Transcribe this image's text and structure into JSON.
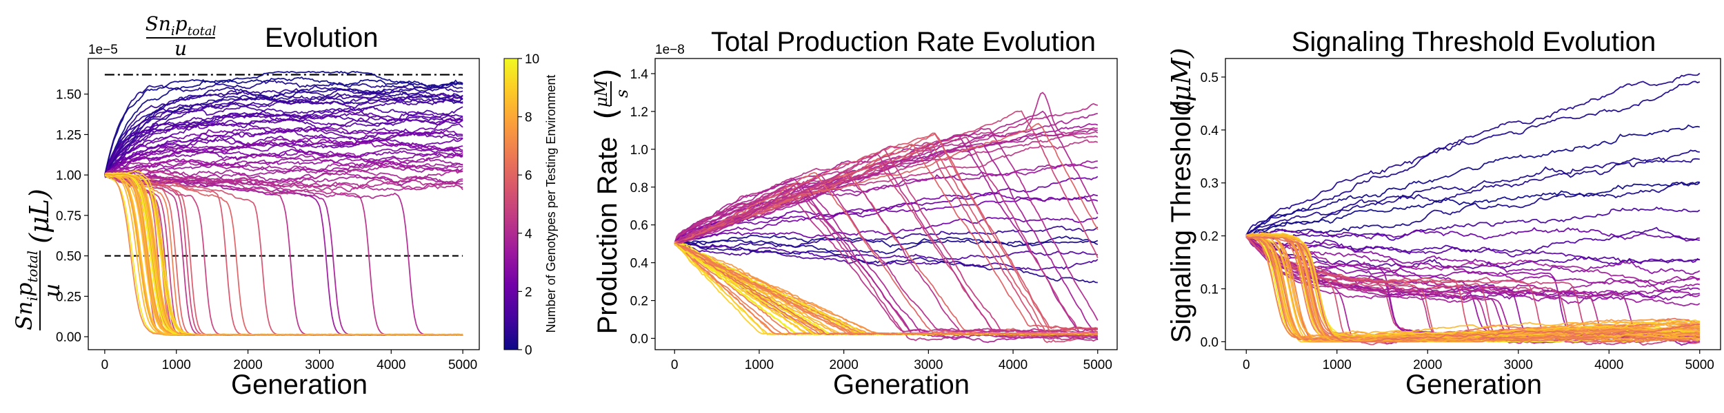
{
  "colormap": [
    "#0d0887",
    "#46039f",
    "#7201a8",
    "#9c179e",
    "#bd3786",
    "#d8576b",
    "#ed7953",
    "#fb9f3a",
    "#fdca26",
    "#f0f921"
  ],
  "colorbar": {
    "label": "Number of Genotypes per Testing Environment",
    "ticks": [
      "0",
      "2",
      "4",
      "6",
      "8",
      "10"
    ],
    "range": [
      0,
      10
    ]
  },
  "chart_data": [
    {
      "id": "snp",
      "type": "line",
      "title": "Evolution",
      "title_math": {
        "numerator": "Sn",
        "num_sub1": "i",
        "num_mid": "p",
        "num_sub2": "total",
        "denominator": "u"
      },
      "xlabel": "Generation",
      "ylabel_unit": "(μL)",
      "ylabel_math": {
        "numerator": "Sn",
        "num_sub1": "i",
        "num_mid": "p",
        "num_sub2": "total",
        "denominator": "u"
      },
      "exponent": "1e−5",
      "xlim": [
        -230,
        5230
      ],
      "ylim": [
        -0.08,
        1.72
      ],
      "xticks": [
        "0",
        "1000",
        "2000",
        "3000",
        "4000",
        "5000"
      ],
      "yticks": [
        "0.00",
        "0.25",
        "0.50",
        "0.75",
        "1.00",
        "1.25",
        "1.50"
      ],
      "hlines": [
        {
          "y": 1.62,
          "style": "dashdot"
        },
        {
          "y": 0.5,
          "style": "dashed"
        }
      ],
      "start": 1.0,
      "survivors": {
        "levels": [
          0,
          0.2,
          0.4,
          0.6,
          0.8,
          1.0,
          1.2,
          1.4,
          1.6,
          1.8,
          2.0,
          2.2,
          2.4,
          2.6,
          2.8,
          3.0,
          3.2,
          3.4,
          3.6,
          3.8,
          4.0
        ],
        "top": 1.6,
        "bottom": 0.92
      },
      "collapses": [
        600,
        700,
        750,
        800,
        820,
        850,
        900,
        950,
        1000,
        1100,
        1150,
        1200,
        1400,
        1700,
        1850,
        2200,
        2600,
        3100,
        3200,
        3700,
        4250
      ],
      "end_low": 0.01
    },
    {
      "id": "prod",
      "type": "line",
      "title": "Total Production Rate Evolution",
      "xlabel": "Generation",
      "ylabel": "Production Rate",
      "ylabel_math": {
        "numerator": "μM",
        "denominator": "s"
      },
      "exponent": "1e−8",
      "xlim": [
        -230,
        5230
      ],
      "ylim": [
        -0.06,
        1.48
      ],
      "xticks": [
        "0",
        "1000",
        "2000",
        "3000",
        "4000",
        "5000"
      ],
      "yticks": [
        "0.0",
        "0.2",
        "0.4",
        "0.6",
        "0.8",
        "1.0",
        "1.2",
        "1.4"
      ],
      "start": 0.5,
      "highs": [
        1.22,
        1.2,
        1.18,
        1.15,
        1.12,
        1.1,
        1.06,
        1.02,
        0.98,
        0.92,
        0.85,
        0.78,
        0.72,
        0.65,
        0.58,
        0.52,
        0.47,
        0.43,
        0.38,
        0.33
      ],
      "peak_x": 4350,
      "peak_y": 1.41,
      "end_low": 0.02
    },
    {
      "id": "thresh",
      "type": "line",
      "title": "Signaling Threshold Evolution",
      "xlabel": "Generation",
      "ylabel": "Signaling Threshold",
      "ylabel_unit": "(μM)",
      "xlim": [
        -230,
        5230
      ],
      "ylim": [
        -0.015,
        0.535
      ],
      "xticks": [
        "0",
        "1000",
        "2000",
        "3000",
        "4000",
        "5000"
      ],
      "yticks": [
        "0.0",
        "0.1",
        "0.2",
        "0.3",
        "0.4",
        "0.5"
      ],
      "start": 0.2,
      "highs": [
        0.51,
        0.47,
        0.42,
        0.355,
        0.34,
        0.31,
        0.29,
        0.25,
        0.2,
        0.19,
        0.17,
        0.15,
        0.14,
        0.13,
        0.12,
        0.11,
        0.1,
        0.095,
        0.09,
        0.085
      ],
      "end_low": 0.02
    }
  ]
}
